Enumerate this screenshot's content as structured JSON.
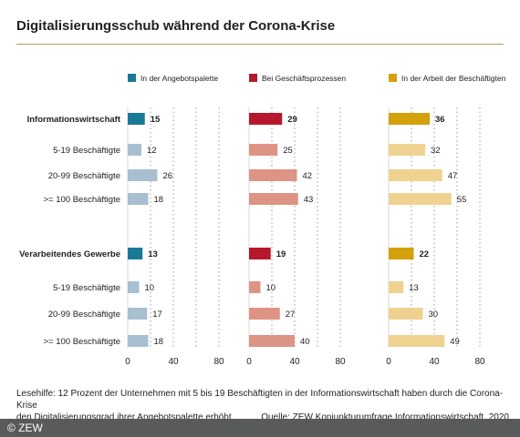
{
  "title": "Digitalisierungsschub während der Corona-Krise",
  "chart_data": {
    "type": "bar",
    "orientation": "horizontal",
    "categories": [
      "Informationswirtschaft",
      "5-19 Beschäftigte",
      "20-99 Beschäftigte",
      ">= 100 Beschäftigte",
      "Verarbeitendes Gewerbe",
      "5-19 Beschäftigte",
      "20-99 Beschäftigte",
      ">= 100 Beschäftigte"
    ],
    "bold_categories": [
      0,
      4
    ],
    "series": [
      {
        "name": "In der Angebotspalette",
        "values": [
          15,
          12,
          26,
          18,
          13,
          10,
          17,
          18
        ],
        "color": "#1a7a96",
        "light_color": "#a8bfd1"
      },
      {
        "name": "Bei Geschäftsprozessen",
        "values": [
          29,
          25,
          42,
          43,
          19,
          10,
          27,
          40
        ],
        "color": "#b5182b",
        "light_color": "#de9484"
      },
      {
        "name": "In der Arbeit der Beschäftigten",
        "values": [
          36,
          32,
          47,
          55,
          22,
          13,
          30,
          49
        ],
        "color": "#d4a00c",
        "light_color": "#efd190"
      }
    ],
    "xlim": [
      0,
      100
    ],
    "xticks": [
      0,
      40,
      80
    ],
    "gridlines": [
      20,
      40,
      60,
      80
    ],
    "grid": "dotted",
    "legend_position": "top"
  },
  "footnote": {
    "line1": "Lesehilfe: 12 Prozent der Unternehmen mit 5 bis 19 Beschäftigten in der Informationswirtschaft haben durch die Corona-Krise",
    "line2": "den Digitalisierungsgrad ihrer Angebotspalette erhöht.",
    "source": "Quelle: ZEW Konjunkturumfrage Informationswirtschaft, 2020"
  },
  "copyright": "© ZEW",
  "colors": {
    "rule": "#b9975b",
    "footer": "#585a5c",
    "grid": "#9a9a9a"
  }
}
